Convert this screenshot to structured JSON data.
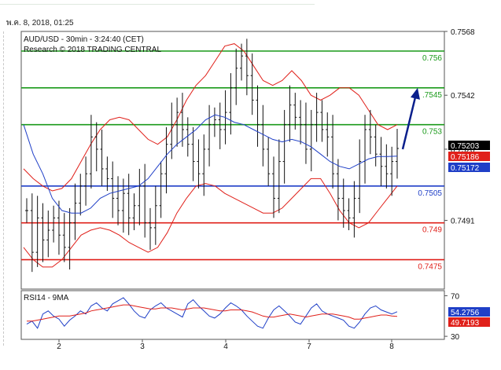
{
  "timestamp": "พ.ค. 8, 2018, 01:25",
  "chart_data": [
    {
      "type": "candlestick",
      "title": "AUD/USD - 30min - 3:24:40 (CET)",
      "subtitle": "Research © 2018 TRADING CENTRAL",
      "ylim": [
        0.7463,
        0.7568
      ],
      "y_ticks": [
        "0.7568",
        "0.7542",
        "0.7520",
        "0.7491"
      ],
      "x_ticks": [
        "2",
        "3",
        "4",
        "7",
        "8"
      ],
      "levels": [
        {
          "label": "0.756",
          "value": 0.756,
          "color": "#1a9a1a"
        },
        {
          "label": ".7545",
          "value": 0.7545,
          "color": "#1a9a1a"
        },
        {
          "label": "0.753",
          "value": 0.753,
          "color": "#1a9a1a"
        },
        {
          "label": "0.7505",
          "value": 0.7505,
          "color": "#1f3fc7"
        },
        {
          "label": "0.749",
          "value": 0.749,
          "color": "#e0201a"
        },
        {
          "label": "0.7475",
          "value": 0.7475,
          "color": "#e0201a"
        }
      ],
      "last_price": {
        "label": "0.75203",
        "value": 0.75203,
        "color": "#000000"
      },
      "boll_mid": {
        "label": "0.75186",
        "value": 0.75186,
        "color": "#e0201a"
      },
      "ma_value": {
        "label": "0.75172",
        "value": 0.75172,
        "color": "#1f3fc7"
      },
      "price_path": [
        0.7495,
        0.7478,
        0.7492,
        0.7483,
        0.7487,
        0.7492,
        0.7485,
        0.748,
        0.749,
        0.7498,
        0.7505,
        0.751,
        0.7525,
        0.752,
        0.7512,
        0.7508,
        0.75,
        0.7495,
        0.7502,
        0.7492,
        0.7497,
        0.7505,
        0.749,
        0.7488,
        0.7497,
        0.751,
        0.7522,
        0.753,
        0.7535,
        0.7528,
        0.7522,
        0.7515,
        0.751,
        0.752,
        0.753,
        0.7532,
        0.7528,
        0.7535,
        0.7545,
        0.7553,
        0.7558,
        0.755,
        0.754,
        0.753,
        0.752,
        0.751,
        0.75,
        0.7515,
        0.753,
        0.7538,
        0.7533,
        0.753,
        0.752,
        0.753,
        0.7535,
        0.7528,
        0.7525,
        0.751,
        0.75,
        0.7495,
        0.7492,
        0.75,
        0.7515,
        0.7528,
        0.7525,
        0.7518,
        0.7513,
        0.751,
        0.7515,
        0.75203
      ],
      "bb_upper": [
        0.7512,
        0.7508,
        0.7505,
        0.7503,
        0.7504,
        0.7508,
        0.7515,
        0.7522,
        0.7528,
        0.7532,
        0.7533,
        0.7532,
        0.7528,
        0.7524,
        0.7522,
        0.7525,
        0.7532,
        0.754,
        0.7546,
        0.755,
        0.7556,
        0.7562,
        0.7563,
        0.756,
        0.7554,
        0.7548,
        0.7546,
        0.7548,
        0.7552,
        0.7548,
        0.7542,
        0.754,
        0.7542,
        0.7545,
        0.7545,
        0.7542,
        0.7536,
        0.753,
        0.7528,
        0.753
      ],
      "bb_lower": [
        0.748,
        0.7475,
        0.7472,
        0.7472,
        0.7475,
        0.748,
        0.7485,
        0.7487,
        0.7488,
        0.7487,
        0.7485,
        0.7482,
        0.748,
        0.7478,
        0.748,
        0.7486,
        0.7494,
        0.75,
        0.7505,
        0.7506,
        0.7505,
        0.7502,
        0.75,
        0.7498,
        0.7496,
        0.7494,
        0.7494,
        0.7496,
        0.75,
        0.7504,
        0.7508,
        0.7508,
        0.7502,
        0.7495,
        0.749,
        0.7488,
        0.749,
        0.7495,
        0.75,
        0.7505
      ],
      "ma_line": [
        0.753,
        0.7518,
        0.751,
        0.75,
        0.7495,
        0.7494,
        0.7494,
        0.7496,
        0.75,
        0.7502,
        0.7503,
        0.7504,
        0.7505,
        0.7508,
        0.7513,
        0.7518,
        0.7522,
        0.7525,
        0.7528,
        0.7532,
        0.7534,
        0.7533,
        0.7531,
        0.753,
        0.7528,
        0.7526,
        0.7524,
        0.7523,
        0.7524,
        0.7523,
        0.7521,
        0.7518,
        0.7515,
        0.7513,
        0.7512,
        0.7514,
        0.7516,
        0.7517,
        0.7517,
        0.75172
      ],
      "forecast_arrow": [
        0.752,
        0.7545
      ]
    },
    {
      "type": "line",
      "title": "RSI14 - 9MA",
      "ylim": [
        27,
        75
      ],
      "y_ticks": [
        "70",
        "30"
      ],
      "rsi_value": {
        "label": "54.2756",
        "value": 54.2756,
        "color": "#1f3fc7"
      },
      "ma_value": {
        "label": "49.7193",
        "value": 49.7193,
        "color": "#e0201a"
      },
      "rsi": [
        42,
        45,
        38,
        52,
        55,
        50,
        47,
        40,
        46,
        50,
        55,
        52,
        60,
        63,
        58,
        55,
        62,
        65,
        68,
        62,
        55,
        50,
        48,
        56,
        60,
        63,
        58,
        55,
        52,
        49,
        62,
        66,
        60,
        55,
        50,
        48,
        52,
        58,
        63,
        60,
        56,
        50,
        45,
        40,
        38,
        48,
        56,
        60,
        55,
        50,
        44,
        42,
        50,
        58,
        62,
        55,
        52,
        50,
        48,
        46,
        40,
        38,
        44,
        52,
        58,
        60,
        56,
        54,
        52,
        54.2756
      ],
      "rsi_ma": [
        45,
        45,
        46,
        47,
        48,
        49,
        50,
        50,
        50,
        51,
        52,
        53,
        55,
        56,
        57,
        58,
        59,
        60,
        61,
        61,
        60,
        59,
        58,
        57,
        57,
        58,
        58,
        58,
        57,
        56,
        57,
        58,
        58,
        58,
        57,
        56,
        55,
        55,
        56,
        56,
        56,
        55,
        54,
        52,
        50,
        49,
        49,
        50,
        51,
        52,
        51,
        50,
        49,
        50,
        51,
        52,
        52,
        52,
        51,
        50,
        49,
        47,
        47,
        48,
        49,
        50,
        51,
        51,
        50,
        49.7193
      ]
    }
  ]
}
